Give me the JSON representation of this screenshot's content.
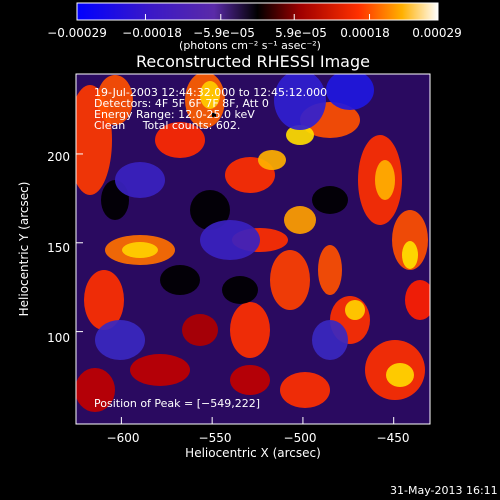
{
  "chart_data": {
    "type": "heatmap",
    "title": "Reconstructed RHESSI Image",
    "xlabel": "Heliocentric X (arcsec)",
    "ylabel": "Heliocentric Y (arcsec)",
    "xlim": [
      -625,
      -430
    ],
    "ylim": [
      48,
      245
    ],
    "x_ticks": [
      -600,
      -550,
      -500,
      -450
    ],
    "x_tick_labels": [
      "−600",
      "−550",
      "−500",
      "−450"
    ],
    "y_ticks": [
      100,
      150,
      200
    ],
    "y_tick_labels": [
      "100",
      "150",
      "200"
    ],
    "colorbar": {
      "min": -0.00029,
      "max": 0.00029,
      "ticks": [
        -0.00029,
        -0.00018,
        -5.9e-05,
        5.9e-05,
        0.00018,
        0.00029
      ],
      "tick_labels": [
        "−0.00029",
        "−0.00018",
        "−5.9e−05",
        "5.9e−05",
        "0.00018",
        "0.00029"
      ],
      "unit_label": "(photons cm⁻² s⁻¹ asec⁻²)",
      "colors": [
        "#0000ff",
        "#3a18c8",
        "#5a2aa8",
        "#000000",
        "#a00000",
        "#ff3000",
        "#ffb000",
        "#ffffff"
      ]
    },
    "annotations": {
      "time_range": "19-Jul-2003 12:44:32.000 to 12:45:12.000",
      "detectors": "Detectors: 4F 5F 6F 7F 8F, Att 0",
      "energy_range": "Energy Range: 12.0-25.0 keV",
      "clean_counts": "Clean     Total counts: 602.",
      "peak": "Position of Peak = [−549,222]"
    },
    "peak": {
      "x": -549,
      "y": 222
    },
    "grid": false,
    "note_date": "31-May-2013 16:11"
  }
}
